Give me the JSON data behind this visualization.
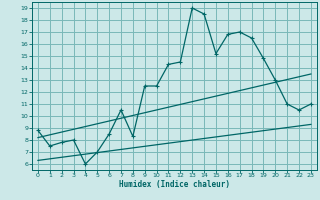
{
  "xlabel": "Humidex (Indice chaleur)",
  "ylabel": "",
  "xlim": [
    -0.5,
    23.5
  ],
  "ylim": [
    5.5,
    19.5
  ],
  "yticks": [
    6,
    7,
    8,
    9,
    10,
    11,
    12,
    13,
    14,
    15,
    16,
    17,
    18,
    19
  ],
  "xticks": [
    0,
    1,
    2,
    3,
    4,
    5,
    6,
    7,
    8,
    9,
    10,
    11,
    12,
    13,
    14,
    15,
    16,
    17,
    18,
    19,
    20,
    21,
    22,
    23
  ],
  "bg_color": "#cce8e8",
  "grid_color": "#7ab8b8",
  "line_color": "#006666",
  "main_x": [
    0,
    1,
    2,
    3,
    4,
    5,
    6,
    7,
    8,
    9,
    10,
    11,
    12,
    13,
    14,
    15,
    16,
    17,
    18,
    19,
    20,
    21,
    22,
    23
  ],
  "main_y": [
    8.8,
    7.5,
    7.8,
    8.0,
    6.0,
    7.0,
    8.5,
    10.5,
    8.3,
    12.5,
    12.5,
    14.3,
    14.5,
    19.0,
    18.5,
    15.2,
    16.8,
    17.0,
    16.5,
    14.8,
    13.0,
    11.0,
    10.5,
    11.0
  ],
  "line1_x": [
    0,
    23
  ],
  "line1_y": [
    8.2,
    13.5
  ],
  "line2_x": [
    0,
    23
  ],
  "line2_y": [
    6.3,
    9.3
  ]
}
